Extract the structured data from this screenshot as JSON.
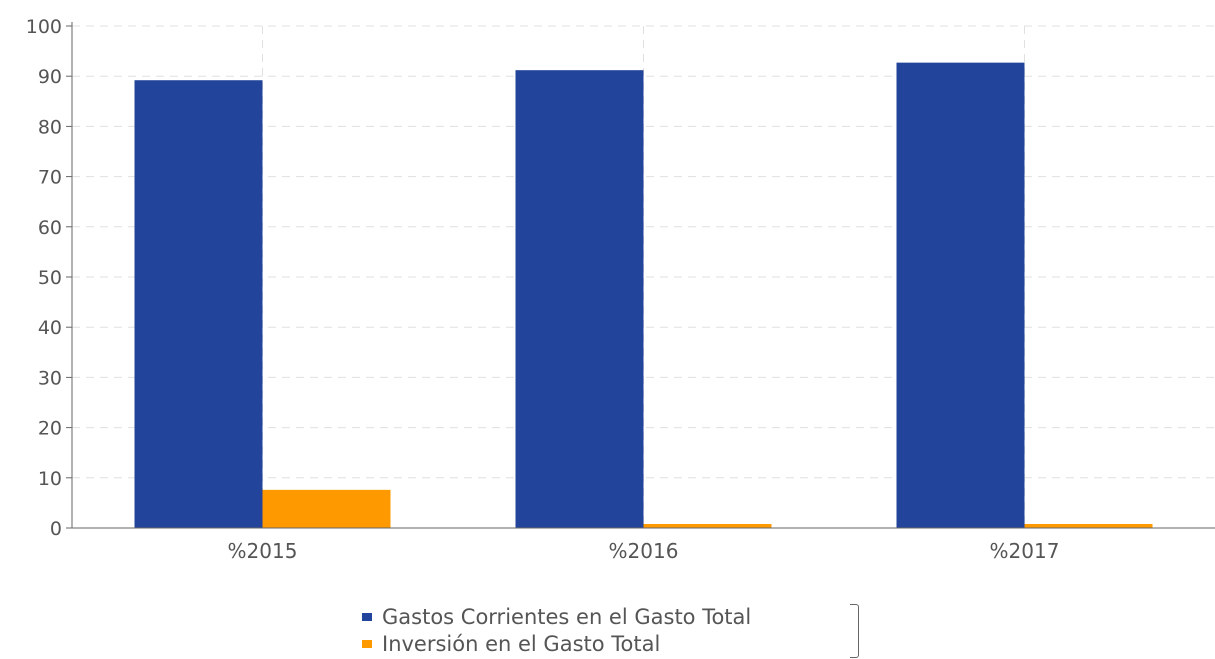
{
  "colors": {
    "series_1": "#22449a",
    "series_2": "#ff9900",
    "axis": "#666666",
    "grid": "#e0e0e0",
    "text": "#555555"
  },
  "chart_data": {
    "type": "bar",
    "categories": [
      "%2015",
      "%2016",
      "%2017"
    ],
    "series": [
      {
        "name": "Gastos Corrientes en el Gasto Total",
        "values": [
          89.2,
          91.2,
          92.7
        ]
      },
      {
        "name": "Inversión en el Gasto Total",
        "values": [
          7.6,
          0.8,
          0.8
        ]
      }
    ],
    "ylim": [
      0,
      100
    ],
    "yticks": [
      "0",
      "10",
      "20",
      "30",
      "40",
      "50",
      "60",
      "70",
      "80",
      "90",
      "100"
    ],
    "grid": true,
    "legend_position": "bottom-center"
  }
}
